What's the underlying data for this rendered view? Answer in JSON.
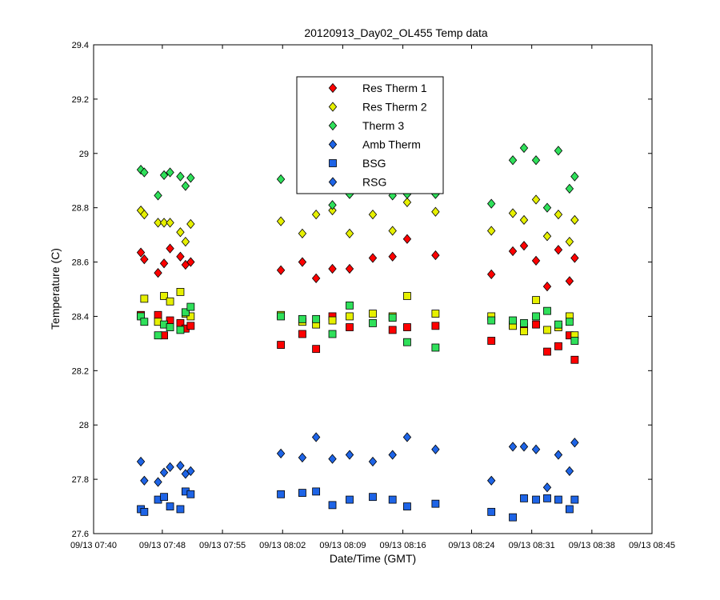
{
  "chart_data": {
    "type": "scatter",
    "title": "20120913_Day02_OL455 Temp data",
    "xlabel": "Date/Time (GMT)",
    "ylabel": "Temperature (C)",
    "date_prefix": "09/13",
    "xlim": [
      "07:40",
      "08:45"
    ],
    "ylim": [
      27.6,
      29.4
    ],
    "xticks": [
      "09/13 07:40",
      "09/13 07:48",
      "09/13 07:55",
      "09/13 08:02",
      "09/13 08:09",
      "09/13 08:16",
      "09/13 08:24",
      "09/13 08:31",
      "09/13 08:38",
      "09/13 08:45"
    ],
    "yticks": [
      "27.6",
      "27.8",
      "28",
      "28.2",
      "28.4",
      "28.6",
      "28.8",
      "29",
      "29.2",
      "29.4"
    ],
    "grid": false,
    "legend_position": "top-center",
    "series": [
      {
        "name": "Res Therm 1",
        "color": "#ff0000",
        "marker": "diamond",
        "points": [
          [
            "07:45:30",
            28.635
          ],
          [
            "07:45:54",
            28.61
          ],
          [
            "07:47:30",
            28.56
          ],
          [
            "07:48:12",
            28.595
          ],
          [
            "07:48:54",
            28.65
          ],
          [
            "07:50:06",
            28.62
          ],
          [
            "07:50:42",
            28.59
          ],
          [
            "07:51:18",
            28.6
          ],
          [
            "08:01:48",
            28.57
          ],
          [
            "08:04:18",
            28.6
          ],
          [
            "08:05:54",
            28.54
          ],
          [
            "08:07:48",
            28.575
          ],
          [
            "08:09:48",
            28.575
          ],
          [
            "08:12:30",
            28.615
          ],
          [
            "08:14:48",
            28.62
          ],
          [
            "08:16:30",
            28.685
          ],
          [
            "08:19:48",
            28.625
          ],
          [
            "08:26:18",
            28.555
          ],
          [
            "08:28:48",
            28.64
          ],
          [
            "08:30:06",
            28.66
          ],
          [
            "08:31:30",
            28.605
          ],
          [
            "08:32:48",
            28.51
          ],
          [
            "08:34:06",
            28.645
          ],
          [
            "08:35:24",
            28.53
          ],
          [
            "08:36:00",
            28.615
          ]
        ]
      },
      {
        "name": "Res Therm 2",
        "color": "#e6f000",
        "marker": "diamond",
        "points": [
          [
            "07:45:30",
            28.79
          ],
          [
            "07:45:54",
            28.775
          ],
          [
            "07:47:30",
            28.745
          ],
          [
            "07:48:12",
            28.745
          ],
          [
            "07:48:54",
            28.745
          ],
          [
            "07:50:06",
            28.71
          ],
          [
            "07:50:42",
            28.675
          ],
          [
            "07:51:18",
            28.74
          ],
          [
            "08:01:48",
            28.75
          ],
          [
            "08:04:18",
            28.705
          ],
          [
            "08:05:54",
            28.775
          ],
          [
            "08:07:48",
            28.79
          ],
          [
            "08:09:48",
            28.705
          ],
          [
            "08:12:30",
            28.775
          ],
          [
            "08:14:48",
            28.715
          ],
          [
            "08:16:30",
            28.82
          ],
          [
            "08:19:48",
            28.785
          ],
          [
            "08:26:18",
            28.715
          ],
          [
            "08:28:48",
            28.78
          ],
          [
            "08:30:06",
            28.755
          ],
          [
            "08:31:30",
            28.83
          ],
          [
            "08:32:48",
            28.695
          ],
          [
            "08:34:06",
            28.775
          ],
          [
            "08:35:24",
            28.675
          ],
          [
            "08:36:00",
            28.755
          ]
        ]
      },
      {
        "name": "Therm 3",
        "color": "#2fe05a",
        "marker": "diamond",
        "points": [
          [
            "07:45:30",
            28.94
          ],
          [
            "07:45:54",
            28.93
          ],
          [
            "07:47:30",
            28.845
          ],
          [
            "07:48:12",
            28.92
          ],
          [
            "07:48:54",
            28.93
          ],
          [
            "07:50:06",
            28.915
          ],
          [
            "07:50:42",
            28.88
          ],
          [
            "07:51:18",
            28.91
          ],
          [
            "08:01:48",
            28.905
          ],
          [
            "08:04:18",
            28.87
          ],
          [
            "08:07:48",
            28.81
          ],
          [
            "08:09:48",
            28.85
          ],
          [
            "08:14:48",
            28.845
          ],
          [
            "08:16:30",
            28.85
          ],
          [
            "08:19:48",
            28.85
          ],
          [
            "08:26:18",
            28.815
          ],
          [
            "08:28:48",
            28.975
          ],
          [
            "08:30:06",
            29.02
          ],
          [
            "08:31:30",
            28.975
          ],
          [
            "08:32:48",
            28.8
          ],
          [
            "08:34:06",
            29.01
          ],
          [
            "08:35:24",
            28.87
          ],
          [
            "08:36:00",
            28.915
          ]
        ]
      },
      {
        "name": "Amb Therm",
        "color": "#1e64e6",
        "marker": "diamond",
        "points": [
          [
            "07:45:30",
            27.865
          ],
          [
            "07:45:54",
            27.795
          ],
          [
            "07:47:30",
            27.79
          ],
          [
            "07:48:12",
            27.825
          ],
          [
            "07:48:54",
            27.845
          ],
          [
            "07:50:06",
            27.85
          ],
          [
            "07:50:42",
            27.82
          ],
          [
            "07:51:18",
            27.83
          ],
          [
            "08:01:48",
            27.895
          ],
          [
            "08:04:18",
            27.88
          ],
          [
            "08:05:54",
            27.955
          ],
          [
            "08:07:48",
            27.875
          ],
          [
            "08:09:48",
            27.89
          ],
          [
            "08:12:30",
            27.865
          ],
          [
            "08:14:48",
            27.89
          ],
          [
            "08:16:30",
            27.955
          ],
          [
            "08:19:48",
            27.91
          ],
          [
            "08:26:18",
            27.795
          ],
          [
            "08:28:48",
            27.92
          ],
          [
            "08:30:06",
            27.92
          ],
          [
            "08:31:30",
            27.91
          ],
          [
            "08:32:48",
            27.77
          ],
          [
            "08:34:06",
            27.89
          ],
          [
            "08:35:24",
            27.83
          ],
          [
            "08:36:00",
            27.935
          ]
        ]
      },
      {
        "name": "BSG",
        "color": "#1e64e6",
        "marker": "square",
        "points": [
          [
            "07:45:30",
            27.69
          ],
          [
            "07:45:54",
            27.68
          ],
          [
            "07:47:30",
            27.725
          ],
          [
            "07:48:12",
            27.735
          ],
          [
            "07:48:54",
            27.7
          ],
          [
            "07:50:06",
            27.69
          ],
          [
            "07:50:42",
            27.755
          ],
          [
            "07:51:18",
            27.745
          ],
          [
            "08:01:48",
            27.745
          ],
          [
            "08:04:18",
            27.75
          ],
          [
            "08:05:54",
            27.755
          ],
          [
            "08:07:48",
            27.705
          ],
          [
            "08:09:48",
            27.725
          ],
          [
            "08:12:30",
            27.735
          ],
          [
            "08:14:48",
            27.725
          ],
          [
            "08:16:30",
            27.7
          ],
          [
            "08:19:48",
            27.71
          ],
          [
            "08:26:18",
            27.68
          ],
          [
            "08:28:48",
            27.66
          ],
          [
            "08:30:06",
            27.73
          ],
          [
            "08:31:30",
            27.725
          ],
          [
            "08:32:48",
            27.73
          ],
          [
            "08:34:06",
            27.725
          ],
          [
            "08:35:24",
            27.69
          ],
          [
            "08:36:00",
            27.725
          ]
        ]
      },
      {
        "name": "RSG",
        "color": "#1e64e6",
        "marker": "diamond",
        "points": []
      },
      {
        "color": "#ff0000",
        "marker": "square",
        "points": [
          [
            "07:45:30",
            28.405
          ],
          [
            "07:47:30",
            28.405
          ],
          [
            "07:48:12",
            28.33
          ],
          [
            "07:48:54",
            28.385
          ],
          [
            "07:50:06",
            28.375
          ],
          [
            "07:50:42",
            28.355
          ],
          [
            "07:51:18",
            28.365
          ],
          [
            "08:01:48",
            28.295
          ],
          [
            "08:04:18",
            28.335
          ],
          [
            "08:05:54",
            28.28
          ],
          [
            "08:07:48",
            28.4
          ],
          [
            "08:09:48",
            28.36
          ],
          [
            "08:14:48",
            28.35
          ],
          [
            "08:16:30",
            28.36
          ],
          [
            "08:19:48",
            28.365
          ],
          [
            "08:26:18",
            28.31
          ],
          [
            "08:28:48",
            28.37
          ],
          [
            "08:30:06",
            28.36
          ],
          [
            "08:31:30",
            28.37
          ],
          [
            "08:32:48",
            28.27
          ],
          [
            "08:34:06",
            28.29
          ],
          [
            "08:35:24",
            28.33
          ],
          [
            "08:36:00",
            28.24
          ]
        ]
      },
      {
        "color": "#e6f000",
        "marker": "square",
        "points": [
          [
            "07:45:54",
            28.465
          ],
          [
            "07:47:30",
            28.38
          ],
          [
            "07:48:12",
            28.475
          ],
          [
            "07:48:54",
            28.455
          ],
          [
            "07:50:06",
            28.49
          ],
          [
            "07:50:42",
            28.41
          ],
          [
            "07:51:18",
            28.4
          ],
          [
            "08:01:48",
            28.405
          ],
          [
            "08:04:18",
            28.38
          ],
          [
            "08:05:54",
            28.37
          ],
          [
            "08:07:48",
            28.385
          ],
          [
            "08:09:48",
            28.4
          ],
          [
            "08:12:30",
            28.41
          ],
          [
            "08:14:48",
            28.4
          ],
          [
            "08:16:30",
            28.475
          ],
          [
            "08:19:48",
            28.41
          ],
          [
            "08:26:18",
            28.4
          ],
          [
            "08:28:48",
            28.365
          ],
          [
            "08:30:06",
            28.345
          ],
          [
            "08:31:30",
            28.46
          ],
          [
            "08:32:48",
            28.35
          ],
          [
            "08:34:06",
            28.36
          ],
          [
            "08:35:24",
            28.4
          ],
          [
            "08:36:00",
            28.33
          ]
        ]
      },
      {
        "color": "#2fe05a",
        "marker": "square",
        "points": [
          [
            "07:45:30",
            28.4
          ],
          [
            "07:45:54",
            28.38
          ],
          [
            "07:47:30",
            28.33
          ],
          [
            "07:48:12",
            28.37
          ],
          [
            "07:48:54",
            28.36
          ],
          [
            "07:50:06",
            28.35
          ],
          [
            "07:50:42",
            28.415
          ],
          [
            "07:51:18",
            28.435
          ],
          [
            "08:01:48",
            28.4
          ],
          [
            "08:04:18",
            28.39
          ],
          [
            "08:05:54",
            28.39
          ],
          [
            "08:07:48",
            28.335
          ],
          [
            "08:09:48",
            28.44
          ],
          [
            "08:12:30",
            28.375
          ],
          [
            "08:14:48",
            28.395
          ],
          [
            "08:16:30",
            28.305
          ],
          [
            "08:19:48",
            28.285
          ],
          [
            "08:26:18",
            28.385
          ],
          [
            "08:28:48",
            28.385
          ],
          [
            "08:30:06",
            28.375
          ],
          [
            "08:31:30",
            28.4
          ],
          [
            "08:32:48",
            28.42
          ],
          [
            "08:34:06",
            28.37
          ],
          [
            "08:35:24",
            28.38
          ],
          [
            "08:36:00",
            28.31
          ]
        ]
      }
    ]
  }
}
